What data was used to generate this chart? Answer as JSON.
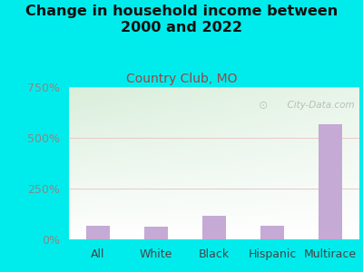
{
  "title": "Change in household income between\n2000 and 2022",
  "subtitle": "Country Club, MO",
  "categories": [
    "All",
    "White",
    "Black",
    "Hispanic",
    "Multirace"
  ],
  "values": [
    68,
    63,
    118,
    65,
    568
  ],
  "bar_color": "#c4aad4",
  "background_color": "#00ecec",
  "plot_bg_top_left": "#d8eeda",
  "plot_bg_bottom_right": "#f8fdf8",
  "title_fontsize": 11.5,
  "subtitle_fontsize": 10,
  "subtitle_color": "#9b4444",
  "tick_label_fontsize": 9,
  "axis_label_color": "#888888",
  "ylim": [
    0,
    750
  ],
  "yticks": [
    0,
    250,
    500,
    750
  ],
  "ytick_labels": [
    "0%",
    "250%",
    "500%",
    "750%"
  ],
  "grid_color": "#e8c8c8",
  "watermark": "  City-Data.com",
  "watermark_color": "#aaaaaa"
}
